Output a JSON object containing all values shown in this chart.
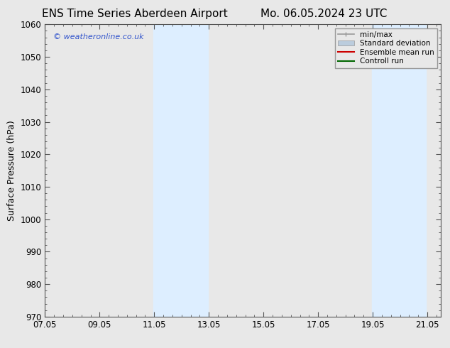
{
  "title_left": "ENS Time Series Aberdeen Airport",
  "title_right": "Mo. 06.05.2024 23 UTC",
  "ylabel": "Surface Pressure (hPa)",
  "xlim_start": 0,
  "xlim_end": 14.5,
  "ylim_bottom": 970,
  "ylim_top": 1060,
  "yticks": [
    970,
    980,
    990,
    1000,
    1010,
    1020,
    1030,
    1040,
    1050,
    1060
  ],
  "xtick_labels": [
    "07.05",
    "09.05",
    "11.05",
    "13.05",
    "15.05",
    "17.05",
    "19.05",
    "21.05"
  ],
  "xtick_positions": [
    0,
    2,
    4,
    6,
    8,
    10,
    12,
    14
  ],
  "shaded_bands": [
    {
      "x_start": 3.9583,
      "x_end": 5.9583
    },
    {
      "x_start": 11.9583,
      "x_end": 13.9583
    }
  ],
  "shaded_color": "#ddeeff",
  "watermark_text": "© weatheronline.co.uk",
  "watermark_color": "#3355cc",
  "legend_labels": [
    "min/max",
    "Standard deviation",
    "Ensemble mean run",
    "Controll run"
  ],
  "legend_line_colors": [
    "#999999",
    "#bbccdd",
    "#cc0000",
    "#006600"
  ],
  "background_color": "#e8e8e8",
  "plot_bg_color": "#e8e8e8",
  "axes_edge_color": "#555555",
  "title_fontsize": 11,
  "tick_label_fontsize": 8.5,
  "ylabel_fontsize": 9,
  "minor_xtick_count": 5,
  "minor_ytick_count": 5
}
